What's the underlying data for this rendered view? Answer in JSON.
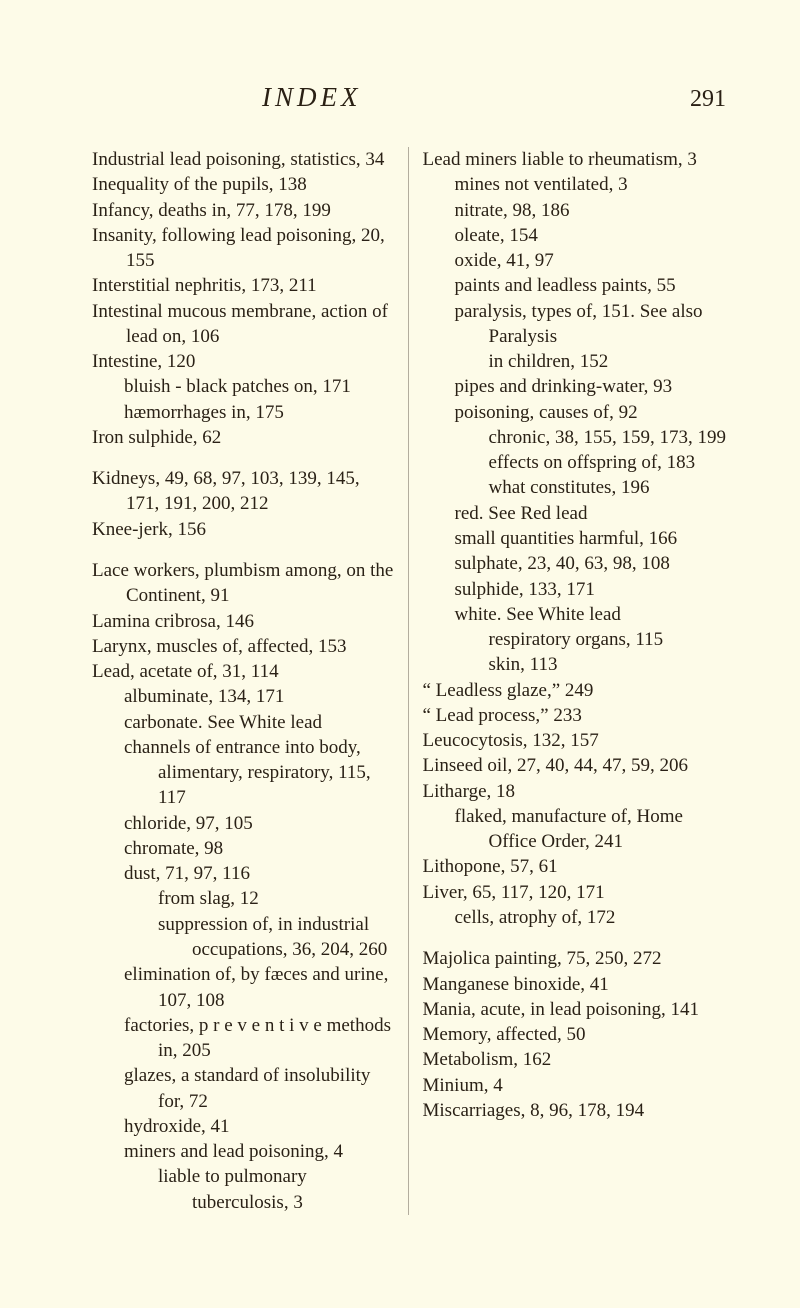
{
  "header": {
    "title": "INDEX",
    "pageNumber": "291"
  },
  "left": {
    "e0": "Industrial lead poisoning, statistics, 34",
    "e1": "Inequality of the pupils, 138",
    "e2": "Infancy, deaths in, 77, 178, 199",
    "e3": "Insanity, following lead poisoning, 20, 155",
    "e4": "Interstitial nephritis, 173, 211",
    "e5": "Intestinal mucous membrane, action of lead on, 106",
    "e6": "Intestine, 120",
    "e6a": "bluish - black patches on, 171",
    "e6b": "hæmorrhages in, 175",
    "e7": "Iron sulphide, 62",
    "e8": "Kidneys, 49, 68, 97, 103, 139, 145, 171, 191, 200, 212",
    "e9": "Knee-jerk, 156",
    "e10": "Lace workers, plumbism among, on the Continent, 91",
    "e11": "Lamina cribrosa, 146",
    "e12": "Larynx, muscles of, affected, 153",
    "e13": "Lead, acetate of, 31, 114",
    "e13a": "albuminate, 134, 171",
    "e13b": "carbonate. See White lead",
    "e13c": "channels of entrance into body, alimentary, respiratory, 115, 117",
    "e13d": "chloride, 97, 105",
    "e13e": "chromate, 98",
    "e13f": "dust, 71, 97, 116",
    "e13f1": "from slag, 12",
    "e13f2": "suppression of, in industrial occupations, 36, 204, 260",
    "e13g": "elimination of, by fæces and urine, 107, 108",
    "e13h": "factories, p r e v e n t i v e methods in, 205",
    "e13i": "glazes, a standard of insolubility for, 72",
    "e13j": "hydroxide, 41",
    "e13k": "miners and lead poisoning, 4",
    "e13k1": "liable to pulmonary tuberculosis, 3"
  },
  "right": {
    "e0": "Lead miners liable to rheumatism, 3",
    "e0a": "mines not ventilated, 3",
    "e0b": "nitrate, 98, 186",
    "e0c": "oleate, 154",
    "e0d": "oxide, 41, 97",
    "e0e": "paints and leadless paints, 55",
    "e0f": "paralysis, types of, 151. See also Paralysis",
    "e0f1": "in children, 152",
    "e0g": "pipes and drinking-water, 93",
    "e0h": "poisoning, causes of, 92",
    "e0h1": "chronic, 38, 155, 159, 173, 199",
    "e0h2": "effects on offspring of, 183",
    "e0h3": "what constitutes, 196",
    "e0i": "red. See Red lead",
    "e0j": "small quantities harmful, 166",
    "e0k": "sulphate, 23, 40, 63, 98, 108",
    "e0l": "sulphide, 133, 171",
    "e0m": "white. See White lead",
    "e0m1": "respiratory organs, 115",
    "e0m2": "skin, 113",
    "e1": "“ Leadless glaze,” 249",
    "e2": "“ Lead process,” 233",
    "e3": "Leucocytosis, 132, 157",
    "e4": "Linseed oil, 27, 40, 44, 47, 59, 206",
    "e5": "Litharge, 18",
    "e5a": "flaked, manufacture of, Home Office Order, 241",
    "e6": "Lithopone, 57, 61",
    "e7": "Liver, 65, 117, 120, 171",
    "e7a": "cells, atrophy of, 172",
    "e8": "Majolica painting, 75, 250, 272",
    "e9": "Manganese binoxide, 41",
    "e10": "Mania, acute, in lead poisoning, 141",
    "e11": "Memory, affected, 50",
    "e12": "Metabolism, 162",
    "e13": "Minium, 4",
    "e14": "Miscarriages, 8, 96, 178, 194"
  }
}
